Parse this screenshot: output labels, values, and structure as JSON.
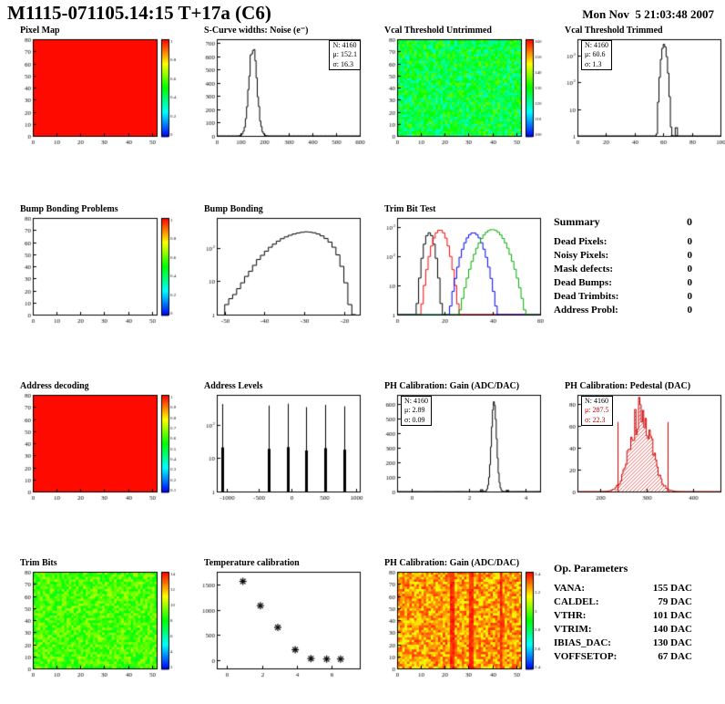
{
  "header": {
    "title": "M1115-071105.14:15 T+17a (C6)",
    "date": "Mon Nov  5 21:03:48 2007"
  },
  "summary": {
    "title": "Summary",
    "total": "0",
    "rows": [
      {
        "label": "Dead Pixels:",
        "value": "0"
      },
      {
        "label": "Noisy Pixels:",
        "value": "0"
      },
      {
        "label": "Mask defects:",
        "value": "0"
      },
      {
        "label": "Dead Bumps:",
        "value": "0"
      },
      {
        "label": "Dead Trimbits:",
        "value": "0"
      },
      {
        "label": "Address Probl:",
        "value": "0"
      }
    ]
  },
  "op_parameters": {
    "title": "Op. Parameters",
    "rows": [
      {
        "label": "VANA:",
        "value": "155 DAC"
      },
      {
        "label": "CALDEL:",
        "value": "79 DAC"
      },
      {
        "label": "VTHR:",
        "value": "101 DAC"
      },
      {
        "label": "VTRIM:",
        "value": "140 DAC"
      },
      {
        "label": "IBIAS_DAC:",
        "value": "130 DAC"
      },
      {
        "label": "VOFFSETOP:",
        "value": "67 DAC"
      }
    ]
  },
  "chart_data": [
    {
      "key": "pixel_map",
      "type": "heatmap",
      "title": "Pixel Map",
      "pattern": "solid",
      "xlim": [
        0,
        52
      ],
      "ylim": [
        0,
        80
      ],
      "xticks": [
        0,
        10,
        20,
        30,
        40,
        50
      ],
      "yticks": [
        0,
        10,
        20,
        30,
        40,
        50,
        60,
        70,
        80
      ],
      "colorbar_ticks": [
        "1",
        "0.8",
        "0.6",
        "0.4",
        "0.2",
        "0"
      ]
    },
    {
      "key": "scurve_noise",
      "type": "histogram",
      "title": "S-Curve widths: Noise (e⁻)",
      "xlim": [
        0,
        600
      ],
      "ylim": [
        0,
        730
      ],
      "xticks": [
        0,
        100,
        200,
        300,
        400,
        500,
        600
      ],
      "yticks": [
        0,
        100,
        200,
        300,
        400,
        500,
        600,
        700
      ],
      "nbins": 120,
      "noise": 0.18,
      "gauss": {
        "mean": 152.1,
        "sigma": 16.3,
        "peak": 690
      },
      "entries": 4160,
      "stats": {
        "n": "N: 4160",
        "mu": "μ: 152.1",
        "sigma": "σ: 16.3"
      }
    },
    {
      "key": "vcal_threshold_untrimmed",
      "type": "heatmap",
      "title": "Vcal Threshold Untrimmed",
      "pattern": "cool",
      "xlim": [
        0,
        52
      ],
      "ylim": [
        0,
        80
      ],
      "xticks": [
        0,
        10,
        20,
        30,
        40,
        50
      ],
      "yticks": [
        0,
        10,
        20,
        30,
        40,
        50,
        60,
        70,
        80
      ],
      "colorbar_ticks": [
        "160",
        "150",
        "140",
        "130",
        "120",
        "110",
        "100"
      ]
    },
    {
      "key": "vcal_threshold_trimmed",
      "type": "histogram",
      "title": "Vcal Threshold Trimmed",
      "ylog": true,
      "ylog_exp": [
        0,
        3.6
      ],
      "xlim": [
        0,
        100
      ],
      "xticks": [
        0,
        20,
        40,
        60,
        80,
        100
      ],
      "nbins": 100,
      "gauss": {
        "mean": 60.6,
        "sigma": 1.3,
        "peak": 2600
      },
      "extras": [
        [
          66,
          1
        ],
        [
          69,
          2
        ]
      ],
      "entries": 4160,
      "stats": {
        "n": "N: 4160",
        "mu": "μ: 60.6",
        "sigma": "σ: 1.3"
      }
    },
    {
      "key": "bump_bonding_problems",
      "type": "heatmap",
      "title": "Bump Bonding Problems",
      "pattern": "empty",
      "xlim": [
        0,
        52
      ],
      "ylim": [
        0,
        80
      ],
      "xticks": [
        0,
        10,
        20,
        30,
        40,
        50
      ],
      "yticks": [
        0,
        10,
        20,
        30,
        40,
        50,
        60,
        70,
        80
      ],
      "colorbar_ticks": [
        "1",
        "0.8",
        "0.6",
        "0.4",
        "0.2",
        "0"
      ]
    },
    {
      "key": "bump_bonding",
      "type": "histogram-bins",
      "title": "Bump Bonding",
      "ylog": true,
      "ylog_exp": [
        0,
        2.9
      ],
      "xlim": [
        -52,
        -16
      ],
      "xticks": [
        -50,
        -40,
        -30,
        -20
      ],
      "bin_start": -50,
      "bin_width": 1,
      "bins": [
        2,
        3,
        4,
        6,
        9,
        14,
        20,
        30,
        45,
        60,
        80,
        105,
        130,
        160,
        190,
        215,
        240,
        262,
        280,
        295,
        305,
        298,
        285,
        262,
        230,
        192,
        150,
        105,
        62,
        28,
        9,
        2,
        1
      ]
    },
    {
      "key": "trim_bit_test",
      "type": "multi-histogram",
      "title": "Trim Bit Test",
      "ylog": true,
      "ylog_exp": [
        0,
        3.3
      ],
      "xlim": [
        0,
        60
      ],
      "xticks": [
        0,
        20,
        40,
        60
      ],
      "nbins": 60,
      "series": [
        {
          "color": "#000000",
          "mean": 13.5,
          "sigma": 1.5,
          "peak": 620
        },
        {
          "color": "#ff0000",
          "mean": 18.0,
          "sigma": 2.2,
          "peak": 780
        },
        {
          "color": "#0000ff",
          "mean": 32.0,
          "sigma": 2.8,
          "peak": 620
        },
        {
          "color": "#00aa00",
          "mean": 40.0,
          "sigma": 3.8,
          "peak": 800
        }
      ]
    },
    {
      "key": "address_decoding",
      "type": "heatmap",
      "title": "Address decoding",
      "pattern": "solid",
      "xlim": [
        0,
        52
      ],
      "ylim": [
        0,
        80
      ],
      "xticks": [
        0,
        10,
        20,
        30,
        40,
        50
      ],
      "yticks": [
        0,
        10,
        20,
        30,
        40,
        50,
        60,
        70,
        80
      ],
      "colorbar_ticks": [
        "1",
        "0.9",
        "0.8",
        "0.7",
        "0.6",
        "0.5",
        "0.4",
        "0.3",
        "0.2",
        "0.1"
      ]
    },
    {
      "key": "address_levels",
      "type": "spikes",
      "title": "Address Levels",
      "ylog": true,
      "ylog_exp": [
        0,
        2.9
      ],
      "xlim": [
        -1150,
        1050
      ],
      "xticks": [
        -1000,
        -500,
        0,
        500,
        1000
      ],
      "spikes": [
        [
          -1060,
          420
        ],
        [
          -350,
          380
        ],
        [
          -60,
          430
        ],
        [
          230,
          340
        ],
        [
          520,
          400
        ],
        [
          810,
          360
        ]
      ]
    },
    {
      "key": "ph_calibration_gain_hist",
      "type": "histogram",
      "title": "PH Calibration: Gain (ADC/DAC)",
      "xlim": [
        -0.5,
        4.5
      ],
      "ylim": [
        0,
        660
      ],
      "xticks": [
        0,
        2,
        4
      ],
      "yticks": [
        0,
        100,
        200,
        300,
        400,
        500,
        600
      ],
      "nbins": 150,
      "gauss": {
        "mean": 2.89,
        "sigma": 0.09,
        "peak": 615
      },
      "extras": [
        [
          2.45,
          12
        ],
        [
          3.35,
          8
        ]
      ],
      "entries": 4160,
      "stats": {
        "n": "N: 4160",
        "mu": "μ: 2.89",
        "sigma": "σ: 0.09"
      }
    },
    {
      "key": "ph_calibration_pedestal",
      "type": "histogram-filled",
      "title": "PH Calibration: Pedestal (DAC)",
      "xlim": [
        150,
        460
      ],
      "ylim": [
        0,
        88
      ],
      "xticks": [
        200,
        300,
        400
      ],
      "yticks": [
        0,
        20,
        40,
        60,
        80
      ],
      "nbins": 110,
      "noise": 0.45,
      "color": "#cc0000",
      "gauss": {
        "mean": 287.5,
        "sigma": 22.3,
        "peak": 72
      },
      "cuts": [
        237,
        345
      ],
      "entries": 4160,
      "stats": {
        "n": "N: 4160",
        "mu": "μ: 287.5",
        "sigma": "σ: 22.3"
      }
    },
    {
      "key": "trim_bits",
      "type": "heatmap",
      "title": "Trim Bits",
      "pattern": "green",
      "xlim": [
        0,
        52
      ],
      "ylim": [
        0,
        80
      ],
      "xticks": [
        0,
        10,
        20,
        30,
        40,
        50
      ],
      "yticks": [
        0,
        10,
        20,
        30,
        40,
        50,
        60,
        70,
        80
      ],
      "colorbar_ticks": [
        "14",
        "12",
        "10",
        "8",
        "6",
        "4",
        "2"
      ]
    },
    {
      "key": "temperature_calibration",
      "type": "scatter",
      "title": "Temperature calibration",
      "xlim": [
        -0.6,
        7.6
      ],
      "ylim": [
        -160,
        1750
      ],
      "xticks": [
        0,
        2,
        4,
        6
      ],
      "yticks": [
        0,
        500,
        1000,
        1500
      ],
      "marker": "asterisk",
      "points": [
        [
          0.9,
          1560
        ],
        [
          1.9,
          1080
        ],
        [
          2.9,
          650
        ],
        [
          3.9,
          210
        ],
        [
          4.8,
          35
        ],
        [
          5.7,
          25
        ],
        [
          6.5,
          25
        ]
      ]
    },
    {
      "key": "ph_calibration_gain_map",
      "type": "heatmap",
      "title": "PH Calibration: Gain (ADC/DAC)",
      "pattern": "hot",
      "streaks": [
        22,
        23,
        30,
        31,
        43
      ],
      "xlim": [
        0,
        52
      ],
      "ylim": [
        0,
        80
      ],
      "xticks": [
        0,
        10,
        20,
        30,
        40,
        50
      ],
      "yticks": [
        0,
        10,
        20,
        30,
        40,
        50,
        60,
        70,
        80
      ],
      "colorbar_ticks": [
        "3.4",
        "3.2",
        "3",
        "2.8",
        "2.6",
        "2.4"
      ]
    }
  ]
}
